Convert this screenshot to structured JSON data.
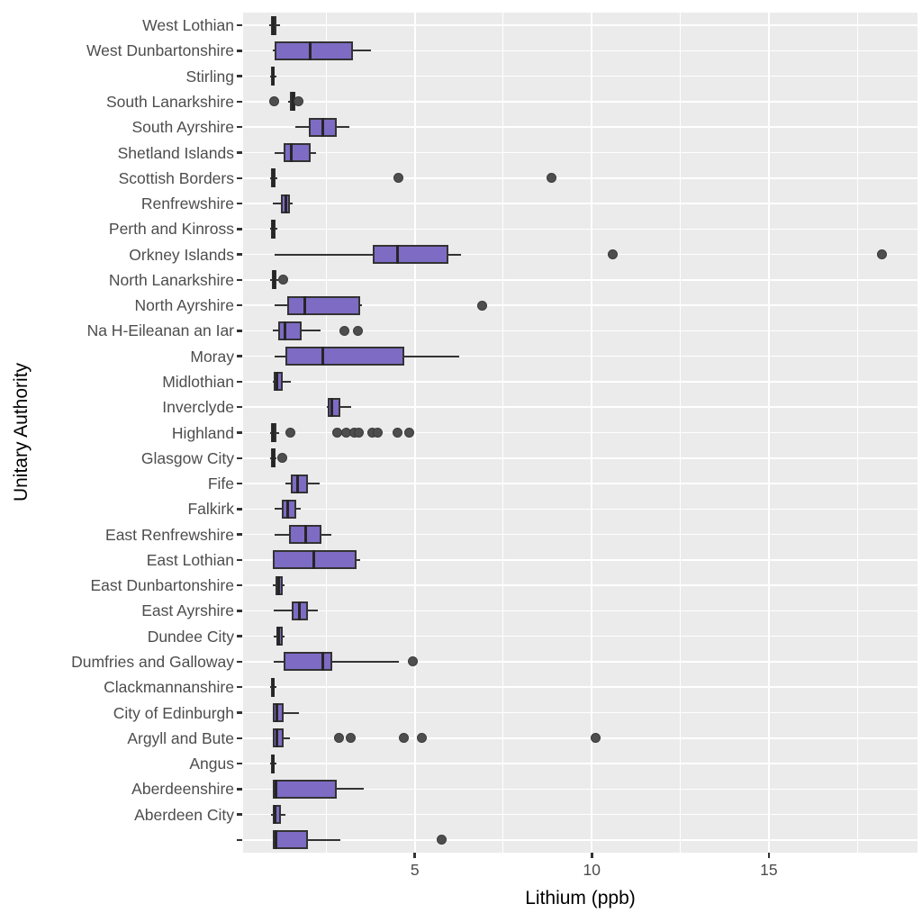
{
  "chart_data": {
    "type": "boxplot",
    "orientation": "horizontal",
    "title": "",
    "xlabel": "Lithium (ppb)",
    "ylabel": "Unitary Authority",
    "xlim": [
      0.15,
      19.2
    ],
    "x_ticks": [
      5,
      10,
      15
    ],
    "x_minor_ticks": [
      2.5,
      7.5,
      12.5,
      17.5
    ],
    "grid": "on",
    "legend": "none",
    "colors": {
      "box_fill": "#7E6BC4",
      "box_stroke": "#333333",
      "median": "#262626",
      "outlier": "#4E4E4E",
      "panel_background": "#EBEBEB",
      "gridline": "#FFFFFF",
      "axis_text": "#4D4D4D",
      "axis_title": "#000000"
    },
    "series": [
      {
        "label": "West Lothian",
        "min": 0.9,
        "q1": 0.93,
        "median": 1.0,
        "q3": 1.1,
        "max": 1.2,
        "outliers": []
      },
      {
        "label": "West Dunbartonshire",
        "min": 1.0,
        "q1": 1.05,
        "median": 2.05,
        "q3": 3.25,
        "max": 3.75,
        "outliers": []
      },
      {
        "label": "Stirling",
        "min": 0.92,
        "q1": 0.95,
        "median": 1.0,
        "q3": 1.05,
        "max": 1.1,
        "outliers": []
      },
      {
        "label": "South Lanarkshire",
        "min": 1.42,
        "q1": 1.48,
        "median": 1.55,
        "q3": 1.62,
        "max": 1.66,
        "outliers": [
          1.03,
          1.72
        ]
      },
      {
        "label": "South Ayrshire",
        "min": 1.63,
        "q1": 2.0,
        "median": 2.4,
        "q3": 2.8,
        "max": 3.15,
        "outliers": []
      },
      {
        "label": "Shetland Islands",
        "min": 1.05,
        "q1": 1.3,
        "median": 1.5,
        "q3": 2.05,
        "max": 2.2,
        "outliers": []
      },
      {
        "label": "Scottish Borders",
        "min": 0.92,
        "q1": 0.95,
        "median": 1.0,
        "q3": 1.06,
        "max": 1.12,
        "outliers": [
          4.55,
          8.85
        ]
      },
      {
        "label": "Renfrewshire",
        "min": 1.0,
        "q1": 1.23,
        "median": 1.35,
        "q3": 1.48,
        "max": 1.55,
        "outliers": []
      },
      {
        "label": "Perth and Kinross",
        "min": 0.92,
        "q1": 0.95,
        "median": 1.0,
        "q3": 1.06,
        "max": 1.12,
        "outliers": []
      },
      {
        "label": "Orkney Islands",
        "min": 1.05,
        "q1": 3.8,
        "median": 4.5,
        "q3": 5.95,
        "max": 6.3,
        "outliers": [
          10.6,
          18.2
        ]
      },
      {
        "label": "North Lanarkshire",
        "min": 0.92,
        "q1": 0.96,
        "median": 1.02,
        "q3": 1.1,
        "max": 1.15,
        "outliers": [
          1.27
        ]
      },
      {
        "label": "North Ayrshire",
        "min": 1.05,
        "q1": 1.4,
        "median": 1.9,
        "q3": 3.45,
        "max": 3.5,
        "outliers": [
          6.9
        ]
      },
      {
        "label": "Na H-Eileanan an Iar",
        "min": 1.0,
        "q1": 1.15,
        "median": 1.32,
        "q3": 1.8,
        "max": 2.35,
        "outliers": [
          3.0,
          3.4
        ]
      },
      {
        "label": "Moray",
        "min": 1.05,
        "q1": 1.35,
        "median": 2.4,
        "q3": 4.7,
        "max": 6.25,
        "outliers": []
      },
      {
        "label": "Midlothian",
        "min": 1.0,
        "q1": 1.02,
        "median": 1.1,
        "q3": 1.28,
        "max": 1.5,
        "outliers": []
      },
      {
        "label": "Inverclyde",
        "min": 2.52,
        "q1": 2.55,
        "median": 2.65,
        "q3": 2.9,
        "max": 3.2,
        "outliers": []
      },
      {
        "label": "Highland",
        "min": 0.92,
        "q1": 0.95,
        "median": 1.0,
        "q3": 1.08,
        "max": 1.18,
        "outliers": [
          1.48,
          2.82,
          3.05,
          3.28,
          3.43,
          3.8,
          3.95,
          4.5,
          4.83
        ]
      },
      {
        "label": "Glasgow City",
        "min": 0.92,
        "q1": 0.95,
        "median": 1.0,
        "q3": 1.06,
        "max": 1.1,
        "outliers": [
          1.26
        ]
      },
      {
        "label": "Fife",
        "min": 1.35,
        "q1": 1.5,
        "median": 1.7,
        "q3": 1.97,
        "max": 2.3,
        "outliers": []
      },
      {
        "label": "Falkirk",
        "min": 1.05,
        "q1": 1.25,
        "median": 1.42,
        "q3": 1.65,
        "max": 1.78,
        "outliers": []
      },
      {
        "label": "East Renfrewshire",
        "min": 1.05,
        "q1": 1.45,
        "median": 1.93,
        "q3": 2.37,
        "max": 2.65,
        "outliers": []
      },
      {
        "label": "East Lothian",
        "min": 0.98,
        "q1": 1.0,
        "median": 2.15,
        "q3": 3.35,
        "max": 3.45,
        "outliers": []
      },
      {
        "label": "East Dunbartonshire",
        "min": 1.0,
        "q1": 1.07,
        "median": 1.15,
        "q3": 1.27,
        "max": 1.32,
        "outliers": []
      },
      {
        "label": "East Ayrshire",
        "min": 1.02,
        "q1": 1.52,
        "median": 1.73,
        "q3": 1.97,
        "max": 2.25,
        "outliers": []
      },
      {
        "label": "Dundee City",
        "min": 1.02,
        "q1": 1.08,
        "median": 1.15,
        "q3": 1.28,
        "max": 1.32,
        "outliers": []
      },
      {
        "label": "Dumfries and Galloway",
        "min": 1.02,
        "q1": 1.3,
        "median": 2.4,
        "q3": 2.67,
        "max": 4.55,
        "outliers": [
          4.95
        ]
      },
      {
        "label": "Clackmannanshire",
        "min": 0.92,
        "q1": 0.95,
        "median": 1.0,
        "q3": 1.05,
        "max": 1.1,
        "outliers": []
      },
      {
        "label": "City of Edinburgh",
        "min": 0.98,
        "q1": 1.0,
        "median": 1.1,
        "q3": 1.3,
        "max": 1.73,
        "outliers": []
      },
      {
        "label": "Argyll and Bute",
        "min": 0.98,
        "q1": 1.0,
        "median": 1.1,
        "q3": 1.3,
        "max": 1.47,
        "outliers": [
          2.85,
          3.2,
          4.7,
          5.2,
          10.1
        ]
      },
      {
        "label": "Angus",
        "min": 0.92,
        "q1": 0.95,
        "median": 1.0,
        "q3": 1.05,
        "max": 1.1,
        "outliers": []
      },
      {
        "label": "Aberdeenshire",
        "min": 0.98,
        "q1": 1.0,
        "median": 1.08,
        "q3": 2.8,
        "max": 3.55,
        "outliers": []
      },
      {
        "label": "Aberdeen City",
        "min": 0.95,
        "q1": 0.98,
        "median": 1.05,
        "q3": 1.22,
        "max": 1.35,
        "outliers": []
      },
      {
        "label": "",
        "min": 0.98,
        "q1": 1.0,
        "median": 1.08,
        "q3": 1.97,
        "max": 2.9,
        "outliers": [
          5.75
        ]
      }
    ]
  }
}
